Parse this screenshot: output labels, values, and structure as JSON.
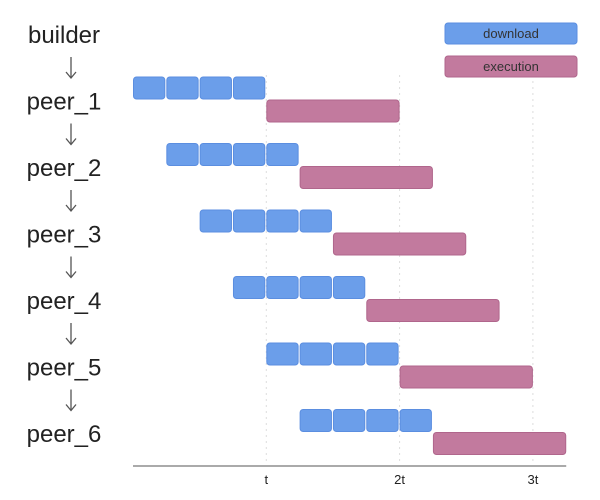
{
  "nodes": [
    "builder",
    "peer_1",
    "peer_2",
    "peer_3",
    "peer_4",
    "peer_5",
    "peer_6"
  ],
  "legend": {
    "download": "download",
    "execution": "execution"
  },
  "colors": {
    "download": "#6b9eea",
    "download_border": "#5b8ee0",
    "execution": "#c27a9e",
    "execution_border": "#b0668c",
    "axis": "#aaaaaa",
    "grid": "#dddddd",
    "arrow": "#555555"
  },
  "axis": {
    "ticks": [
      {
        "value": 1,
        "label": "t"
      },
      {
        "value": 2,
        "label": "2t"
      },
      {
        "value": 3,
        "label": "3t"
      }
    ],
    "range": [
      0,
      3.25
    ]
  },
  "chunks_per_download": 4,
  "download_duration": 1,
  "execution_duration": 1,
  "peers": [
    {
      "name": "peer_1",
      "download_start": 0
    },
    {
      "name": "peer_2",
      "download_start": 0.25
    },
    {
      "name": "peer_3",
      "download_start": 0.5
    },
    {
      "name": "peer_4",
      "download_start": 0.75
    },
    {
      "name": "peer_5",
      "download_start": 1
    },
    {
      "name": "peer_6",
      "download_start": 1.25
    }
  ]
}
